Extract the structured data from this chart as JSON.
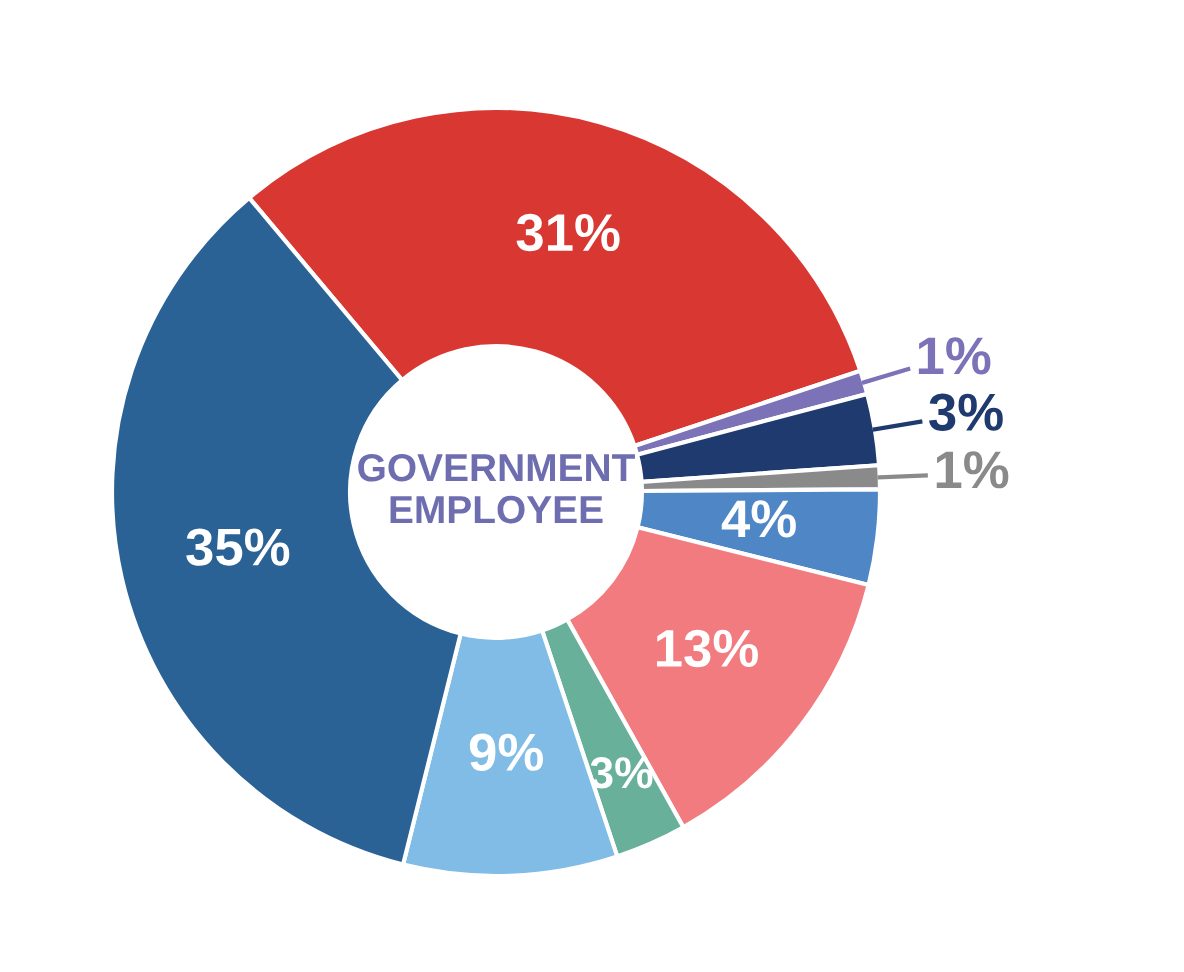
{
  "chart_data": {
    "type": "donut",
    "title": "GOVERNMENT\nEMPLOYEE",
    "categories": [
      null,
      null,
      null,
      null,
      null,
      null,
      null,
      null,
      null
    ],
    "values": [
      31,
      1,
      3,
      1,
      4,
      13,
      3,
      9,
      35
    ],
    "value_labels": [
      "31%",
      "1%",
      "3%",
      "1%",
      "4%",
      "13%",
      "3%",
      "9%",
      "35%"
    ],
    "colors": [
      "#d93732",
      "#7b72b8",
      "#1f3a6e",
      "#8a8a8a",
      "#4f86c6",
      "#f27b7f",
      "#68b09a",
      "#80bce6",
      "#2a6296"
    ]
  }
}
